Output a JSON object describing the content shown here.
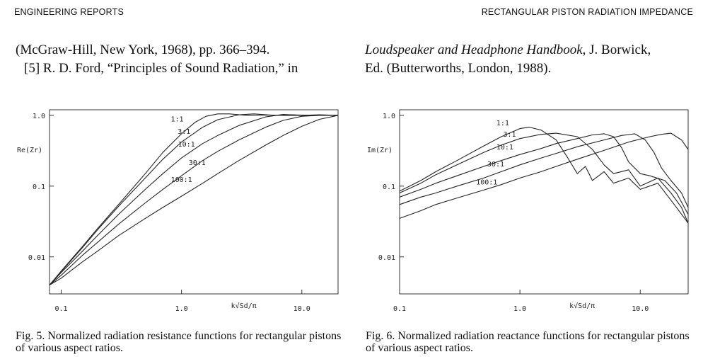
{
  "header": {
    "left": "ENGINEERING REPORTS",
    "right": "RECTANGULAR PISTON RADIATION IMPEDANCE"
  },
  "references": {
    "left_line1": "(McGraw-Hill, New York, 1968), pp. 366–394.",
    "left_line2": "[5]  R. D. Ford, “Principles of Sound Radiation,” in",
    "right_line1_italic": "Loudspeaker and Headphone Handbook",
    "right_line1_rest": ", J. Borwick,",
    "right_line2": "Ed. (Butterworths, London, 1988)."
  },
  "captions": {
    "fig5": "Fig. 5. Normalized radiation resistance functions for rectangular pistons of various aspect ratios.",
    "fig6": "Fig. 6. Normalized radiation reactance functions for rectangular pistons of various aspect ratios."
  },
  "chart_data": [
    {
      "type": "line",
      "ylabel": "Re(Zr)",
      "xlabel": "k√Sd/π",
      "x_scale": "log",
      "y_scale": "log",
      "xlim": [
        0.08,
        20
      ],
      "ylim": [
        0.003,
        1.2
      ],
      "x_ticks": [
        "0.1",
        "1.0",
        "10.0"
      ],
      "y_ticks": [
        "1.0",
        "0.1",
        "0.01"
      ],
      "x_tick_values": [
        0.1,
        1.0,
        10.0
      ],
      "y_tick_values": [
        1.0,
        0.1,
        0.01
      ],
      "series": [
        {
          "name": "1:1",
          "label_at": [
            0.92,
            0.82
          ],
          "points": [
            [
              0.08,
              0.004
            ],
            [
              0.1,
              0.0063
            ],
            [
              0.15,
              0.014
            ],
            [
              0.2,
              0.025
            ],
            [
              0.3,
              0.055
            ],
            [
              0.5,
              0.15
            ],
            [
              0.7,
              0.3
            ],
            [
              1.0,
              0.55
            ],
            [
              1.3,
              0.8
            ],
            [
              1.6,
              0.97
            ],
            [
              2.0,
              1.05
            ],
            [
              2.5,
              1.05
            ],
            [
              3.5,
              1.0
            ],
            [
              5,
              1.01
            ],
            [
              7,
              1.0
            ],
            [
              10,
              1.0
            ],
            [
              14,
              1.0
            ],
            [
              20,
              1.0
            ]
          ]
        },
        {
          "name": "3:1",
          "label_at": [
            1.05,
            0.55
          ],
          "points": [
            [
              0.08,
              0.004
            ],
            [
              0.1,
              0.0062
            ],
            [
              0.15,
              0.0135
            ],
            [
              0.2,
              0.024
            ],
            [
              0.3,
              0.052
            ],
            [
              0.5,
              0.13
            ],
            [
              0.7,
              0.24
            ],
            [
              1.0,
              0.42
            ],
            [
              1.5,
              0.68
            ],
            [
              2,
              0.87
            ],
            [
              3,
              1.02
            ],
            [
              4,
              1.05
            ],
            [
              6,
              1.0
            ],
            [
              8,
              1.02
            ],
            [
              12,
              1.0
            ],
            [
              20,
              1.0
            ]
          ]
        },
        {
          "name": "10:1",
          "label_at": [
            1.1,
            0.36
          ],
          "points": [
            [
              0.08,
              0.004
            ],
            [
              0.1,
              0.006
            ],
            [
              0.15,
              0.012
            ],
            [
              0.2,
              0.02
            ],
            [
              0.3,
              0.04
            ],
            [
              0.5,
              0.09
            ],
            [
              0.7,
              0.15
            ],
            [
              1.0,
              0.25
            ],
            [
              1.5,
              0.4
            ],
            [
              2,
              0.52
            ],
            [
              3,
              0.72
            ],
            [
              5,
              0.95
            ],
            [
              7,
              1.03
            ],
            [
              10,
              1.0
            ],
            [
              14,
              1.02
            ],
            [
              20,
              1.0
            ]
          ]
        },
        {
          "name": "30:1",
          "label_at": [
            1.35,
            0.2
          ],
          "points": [
            [
              0.08,
              0.004
            ],
            [
              0.1,
              0.0055
            ],
            [
              0.15,
              0.0105
            ],
            [
              0.2,
              0.016
            ],
            [
              0.3,
              0.029
            ],
            [
              0.5,
              0.058
            ],
            [
              0.7,
              0.09
            ],
            [
              1.0,
              0.14
            ],
            [
              1.5,
              0.23
            ],
            [
              2,
              0.31
            ],
            [
              3,
              0.45
            ],
            [
              5,
              0.68
            ],
            [
              7,
              0.85
            ],
            [
              10,
              0.97
            ],
            [
              14,
              1.0
            ],
            [
              20,
              1.0
            ]
          ]
        },
        {
          "name": "100:1",
          "label_at": [
            1.0,
            0.115
          ],
          "points": [
            [
              0.08,
              0.004
            ],
            [
              0.1,
              0.005
            ],
            [
              0.15,
              0.0085
            ],
            [
              0.2,
              0.012
            ],
            [
              0.3,
              0.02
            ],
            [
              0.5,
              0.035
            ],
            [
              0.7,
              0.05
            ],
            [
              1.0,
              0.072
            ],
            [
              1.5,
              0.11
            ],
            [
              2,
              0.15
            ],
            [
              3,
              0.23
            ],
            [
              5,
              0.38
            ],
            [
              7,
              0.52
            ],
            [
              10,
              0.7
            ],
            [
              14,
              0.88
            ],
            [
              20,
              1.0
            ]
          ]
        }
      ]
    },
    {
      "type": "line",
      "ylabel": "Im(Zr)",
      "xlabel": "k√Sd/π",
      "x_scale": "log",
      "y_scale": "log",
      "xlim": [
        0.1,
        25
      ],
      "ylim": [
        0.003,
        1.2
      ],
      "x_ticks": [
        "0.1",
        "1.0",
        "10.0"
      ],
      "y_ticks": [
        "1.0",
        "0.1",
        "0.01"
      ],
      "x_tick_values": [
        0.1,
        1.0,
        10.0
      ],
      "y_tick_values": [
        1.0,
        0.1,
        0.01
      ],
      "series": [
        {
          "name": "1:1",
          "label_at": [
            0.72,
            0.72
          ],
          "points": [
            [
              0.1,
              0.085
            ],
            [
              0.15,
              0.12
            ],
            [
              0.2,
              0.16
            ],
            [
              0.3,
              0.23
            ],
            [
              0.5,
              0.37
            ],
            [
              0.7,
              0.5
            ],
            [
              1.0,
              0.65
            ],
            [
              1.2,
              0.68
            ],
            [
              1.5,
              0.62
            ],
            [
              2.0,
              0.45
            ],
            [
              2.5,
              0.25
            ],
            [
              3.0,
              0.15
            ],
            [
              3.5,
              0.19
            ],
            [
              4.0,
              0.12
            ],
            [
              5.0,
              0.16
            ],
            [
              6.0,
              0.11
            ],
            [
              8.0,
              0.13
            ],
            [
              10,
              0.09
            ],
            [
              14,
              0.11
            ],
            [
              20,
              0.05
            ],
            [
              25,
              0.03
            ]
          ]
        },
        {
          "name": "3:1",
          "label_at": [
            0.82,
            0.5
          ],
          "points": [
            [
              0.1,
              0.08
            ],
            [
              0.15,
              0.11
            ],
            [
              0.2,
              0.145
            ],
            [
              0.3,
              0.2
            ],
            [
              0.5,
              0.3
            ],
            [
              0.7,
              0.38
            ],
            [
              1.0,
              0.47
            ],
            [
              1.5,
              0.54
            ],
            [
              2,
              0.56
            ],
            [
              3,
              0.5
            ],
            [
              4,
              0.33
            ],
            [
              5,
              0.2
            ],
            [
              6,
              0.15
            ],
            [
              8,
              0.17
            ],
            [
              10,
              0.1
            ],
            [
              14,
              0.13
            ],
            [
              18,
              0.08
            ],
            [
              22,
              0.05
            ],
            [
              25,
              0.03
            ]
          ]
        },
        {
          "name": "10:1",
          "label_at": [
            0.75,
            0.33
          ],
          "points": [
            [
              0.1,
              0.07
            ],
            [
              0.15,
              0.09
            ],
            [
              0.2,
              0.11
            ],
            [
              0.3,
              0.14
            ],
            [
              0.5,
              0.19
            ],
            [
              0.7,
              0.23
            ],
            [
              1.0,
              0.28
            ],
            [
              1.5,
              0.34
            ],
            [
              2,
              0.4
            ],
            [
              3,
              0.47
            ],
            [
              4,
              0.53
            ],
            [
              5,
              0.55
            ],
            [
              6,
              0.5
            ],
            [
              7,
              0.35
            ],
            [
              8,
              0.22
            ],
            [
              10,
              0.15
            ],
            [
              12,
              0.14
            ],
            [
              16,
              0.12
            ],
            [
              20,
              0.08
            ],
            [
              25,
              0.04
            ]
          ]
        },
        {
          "name": "30:1",
          "label_at": [
            0.63,
            0.19
          ],
          "points": [
            [
              0.1,
              0.055
            ],
            [
              0.15,
              0.07
            ],
            [
              0.2,
              0.08
            ],
            [
              0.3,
              0.1
            ],
            [
              0.5,
              0.13
            ],
            [
              0.7,
              0.16
            ],
            [
              1.0,
              0.2
            ],
            [
              1.5,
              0.25
            ],
            [
              2,
              0.29
            ],
            [
              3,
              0.36
            ],
            [
              5,
              0.45
            ],
            [
              7,
              0.52
            ],
            [
              9,
              0.55
            ],
            [
              11,
              0.45
            ],
            [
              13,
              0.3
            ],
            [
              15,
              0.18
            ],
            [
              18,
              0.12
            ],
            [
              22,
              0.08
            ],
            [
              25,
              0.05
            ]
          ]
        },
        {
          "name": "100:1",
          "label_at": [
            0.53,
            0.105
          ],
          "points": [
            [
              0.1,
              0.035
            ],
            [
              0.15,
              0.045
            ],
            [
              0.2,
              0.055
            ],
            [
              0.3,
              0.068
            ],
            [
              0.5,
              0.088
            ],
            [
              0.7,
              0.105
            ],
            [
              1.0,
              0.13
            ],
            [
              1.5,
              0.16
            ],
            [
              2,
              0.19
            ],
            [
              3,
              0.24
            ],
            [
              5,
              0.32
            ],
            [
              8,
              0.42
            ],
            [
              12,
              0.5
            ],
            [
              15,
              0.54
            ],
            [
              18,
              0.56
            ],
            [
              22,
              0.45
            ],
            [
              25,
              0.33
            ]
          ]
        }
      ]
    }
  ]
}
